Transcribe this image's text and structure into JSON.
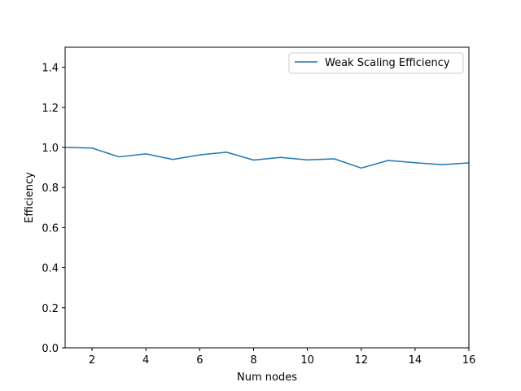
{
  "chart_data": {
    "type": "line",
    "title": "",
    "xlabel": "Num nodes",
    "ylabel": "Efficiency",
    "xlim": [
      1,
      16
    ],
    "ylim": [
      0.0,
      1.5
    ],
    "x_ticks": [
      2,
      4,
      6,
      8,
      10,
      12,
      14,
      16
    ],
    "y_ticks": [
      0.0,
      0.2,
      0.4,
      0.6,
      0.8,
      1.0,
      1.2,
      1.4
    ],
    "x_tick_labels": [
      "2",
      "4",
      "6",
      "8",
      "10",
      "12",
      "14",
      "16"
    ],
    "y_tick_labels": [
      "0.0",
      "0.2",
      "0.4",
      "0.6",
      "0.8",
      "1.0",
      "1.2",
      "1.4"
    ],
    "grid": false,
    "legend_position": "top-right",
    "series": [
      {
        "name": "Weak Scaling Efficiency",
        "color": "#1f77b4",
        "x": [
          1,
          2,
          3,
          4,
          5,
          6,
          7,
          8,
          9,
          10,
          11,
          12,
          13,
          14,
          15,
          16
        ],
        "values": [
          1.0,
          0.997,
          0.953,
          0.968,
          0.94,
          0.963,
          0.976,
          0.937,
          0.95,
          0.938,
          0.943,
          0.897,
          0.935,
          0.924,
          0.914,
          0.923
        ]
      }
    ]
  }
}
